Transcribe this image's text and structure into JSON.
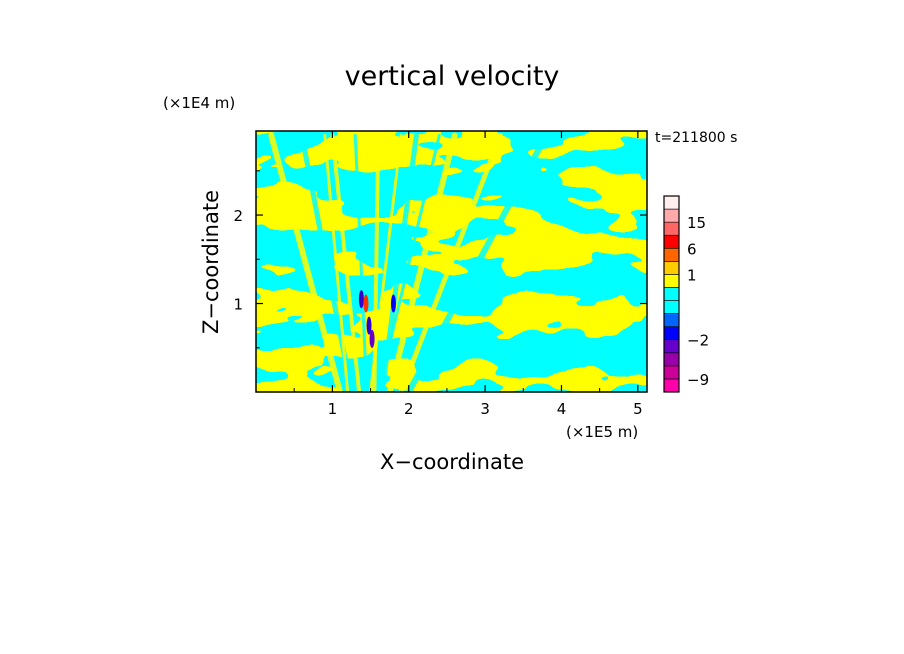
{
  "chart_data": {
    "type": "heatmap",
    "title": "vertical velocity",
    "xlabel": "X−coordinate",
    "ylabel": "Z−coordinate",
    "x_unit": "(×1E5 m)",
    "y_unit": "(×1E4 m)",
    "time_label": "t=211800 s",
    "xlim": [
      0,
      5.12
    ],
    "ylim": [
      0,
      2.95
    ],
    "x_ticks": [
      "1",
      "2",
      "3",
      "4",
      "5"
    ],
    "x_tick_values": [
      1,
      2,
      3,
      4,
      5
    ],
    "y_ticks": [
      "1",
      "2"
    ],
    "y_tick_values": [
      1,
      2
    ],
    "colorbar": {
      "levels": [
        -12,
        -9,
        -6,
        -4,
        -2,
        -1,
        -0.5,
        0,
        0.5,
        1,
        3,
        6,
        10,
        15,
        20,
        25
      ],
      "colors": [
        "#ff00aa",
        "#cc0099",
        "#9900aa",
        "#6600cc",
        "#0000ff",
        "#0066ff",
        "#00ffff",
        "#00ffff",
        "#ffff00",
        "#ffcc00",
        "#ff6600",
        "#ff0000",
        "#ff6666",
        "#ffaaaa",
        "#ffeeee"
      ],
      "labels": [
        "15",
        "6",
        "1",
        "−2",
        "−9"
      ],
      "label_values": [
        15,
        6,
        1,
        -2,
        -9
      ]
    }
  },
  "colors": {
    "positive": "#ffff00",
    "negative": "#00ffff",
    "strong_negative": "#3300cc",
    "strong_positive": "#ff3300"
  }
}
